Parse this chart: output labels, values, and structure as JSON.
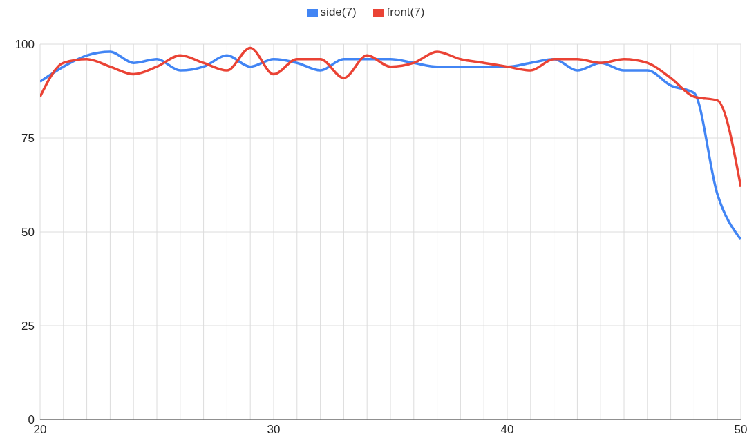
{
  "chart_data": {
    "type": "line",
    "legend": "top",
    "grid": true,
    "marker": "none",
    "line_style": "solid",
    "x": [
      20,
      21,
      22,
      23,
      24,
      25,
      26,
      27,
      28,
      29,
      30,
      31,
      32,
      33,
      34,
      35,
      36,
      37,
      38,
      39,
      40,
      41,
      42,
      43,
      44,
      45,
      46,
      47,
      48,
      49,
      50
    ],
    "xlim": [
      20,
      50
    ],
    "xticks": [
      20,
      {
        "value": 21,
        "label": null
      },
      {
        "value": 22,
        "label": null
      },
      {
        "value": 23,
        "label": null
      },
      {
        "value": 24,
        "label": null
      },
      {
        "value": 25,
        "label": null
      },
      {
        "value": 26,
        "label": null
      },
      {
        "value": 27,
        "label": null
      },
      {
        "value": 28,
        "label": null
      },
      {
        "value": 29,
        "label": null
      },
      30,
      {
        "value": 31,
        "label": null
      },
      {
        "value": 32,
        "label": null
      },
      {
        "value": 33,
        "label": null
      },
      {
        "value": 34,
        "label": null
      },
      {
        "value": 35,
        "label": null
      },
      {
        "value": 36,
        "label": null
      },
      {
        "value": 37,
        "label": null
      },
      {
        "value": 38,
        "label": null
      },
      {
        "value": 39,
        "label": null
      },
      40,
      {
        "value": 41,
        "label": null
      },
      {
        "value": 42,
        "label": null
      },
      {
        "value": 43,
        "label": null
      },
      {
        "value": 44,
        "label": null
      },
      {
        "value": 45,
        "label": null
      },
      {
        "value": 46,
        "label": null
      },
      {
        "value": 47,
        "label": null
      },
      {
        "value": 48,
        "label": null
      },
      {
        "value": 49,
        "label": null
      },
      50
    ],
    "ylim": [
      0,
      100
    ],
    "yticks": [
      0,
      25,
      50,
      75,
      100
    ],
    "series": [
      {
        "name": "side(7)",
        "color": "#4285f4",
        "values": [
          90,
          94,
          97,
          98,
          95,
          96,
          93,
          94,
          97,
          94,
          96,
          95,
          93,
          96,
          96,
          96,
          95,
          94,
          94,
          94,
          94,
          95,
          96,
          93,
          95,
          93,
          93,
          89,
          87,
          60,
          48
        ]
      },
      {
        "name": "front(7)",
        "color": "#ea4335",
        "values": [
          86,
          95,
          96,
          94,
          92,
          94,
          97,
          95,
          93,
          99,
          92,
          96,
          96,
          91,
          97,
          94,
          95,
          98,
          96,
          95,
          94,
          93,
          96,
          96,
          95,
          96,
          95,
          91,
          86,
          85,
          62
        ]
      }
    ]
  }
}
